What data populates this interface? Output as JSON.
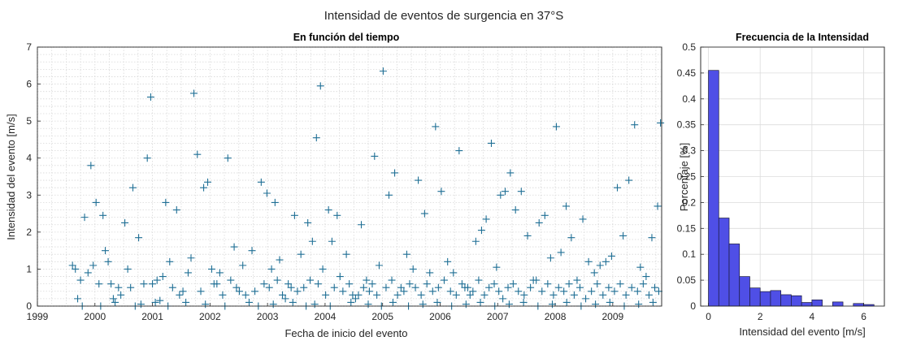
{
  "figure": {
    "suptitle": "Intensidad de eventos de surgencia en 37°S"
  },
  "chart_data": [
    {
      "type": "scatter",
      "title": "En función del tiempo",
      "xlabel": "Fecha de inicio del evento",
      "ylabel": "Intensidad del evento [m/s]",
      "xlim": [
        1999.0,
        2009.85
      ],
      "ylim": [
        0,
        7
      ],
      "xticks": [
        "1999",
        "2000",
        "2001",
        "2002",
        "2003",
        "2004",
        "2005",
        "2006",
        "2007",
        "2008",
        "2009"
      ],
      "yticks": [
        0,
        1,
        2,
        3,
        4,
        5,
        6,
        7
      ],
      "grid": true,
      "minor_grid": true,
      "marker": "+",
      "color": "#1f6f95",
      "x": [
        1999.61,
        1999.66,
        1999.75,
        1999.82,
        1999.88,
        1999.93,
        1999.97,
        2000.02,
        2000.07,
        2000.14,
        2000.18,
        2000.23,
        2000.32,
        2000.41,
        2000.52,
        2000.57,
        2000.66,
        2000.76,
        2000.85,
        2000.91,
        2000.97,
        2001.08,
        2001.13,
        2001.23,
        2001.3,
        2001.42,
        2001.53,
        2001.62,
        2001.72,
        2001.78,
        2001.89,
        2001.96,
        2002.03,
        2002.12,
        2002.22,
        2002.31,
        2002.42,
        2002.46,
        2002.57,
        2002.73,
        2002.89,
        2002.99,
        2003.07,
        2003.13,
        2003.21,
        2003.31,
        2003.41,
        2003.47,
        2003.58,
        2003.7,
        2003.78,
        2003.85,
        2003.92,
        2003.96,
        2004.06,
        2004.12,
        2004.21,
        2004.26,
        2004.37,
        2004.48,
        2004.63,
        2004.72,
        2004.86,
        2004.94,
        2005.01,
        2005.11,
        2005.21,
        2005.32,
        2005.42,
        2005.53,
        2005.62,
        2005.73,
        2005.82,
        2005.92,
        2006.02,
        2006.13,
        2006.23,
        2006.33,
        2006.43,
        2006.52,
        2006.62,
        2006.72,
        2006.8,
        2006.89,
        2006.98,
        2007.05,
        2007.13,
        2007.22,
        2007.31,
        2007.41,
        2007.52,
        2007.62,
        2007.72,
        2007.82,
        2007.92,
        2008.02,
        2008.1,
        2008.19,
        2008.28,
        2008.38,
        2008.48,
        2008.58,
        2008.68,
        2008.78,
        2008.88,
        2008.98,
        2009.08,
        2009.18,
        2009.28,
        2009.38,
        2009.48,
        2009.58,
        2009.68,
        2009.78,
        2009.83,
        1999.7,
        2000.28,
        2000.45,
        2000.62,
        2001.0,
        2001.18,
        2001.35,
        2001.47,
        2001.67,
        2001.84,
        2002.07,
        2002.17,
        2002.36,
        2002.51,
        2002.62,
        2002.78,
        2002.94,
        2003.03,
        2003.17,
        2003.26,
        2003.36,
        2003.52,
        2003.63,
        2003.74,
        2003.88,
        2004.01,
        2004.16,
        2004.31,
        2004.42,
        2004.53,
        2004.58,
        2004.67,
        2004.77,
        2004.82,
        2004.9,
        2005.06,
        2005.16,
        2005.26,
        2005.37,
        2005.47,
        2005.57,
        2005.67,
        2005.77,
        2005.87,
        2005.97,
        2006.07,
        2006.18,
        2006.28,
        2006.38,
        2006.48,
        2006.57,
        2006.67,
        2006.77,
        2006.85,
        2006.94,
        2007.02,
        2007.09,
        2007.18,
        2007.27,
        2007.36,
        2007.46,
        2007.57,
        2007.67,
        2007.77,
        2007.87,
        2007.97,
        2008.06,
        2008.15,
        2008.24,
        2008.33,
        2008.43,
        2008.53,
        2008.63,
        2008.73,
        2008.83,
        2008.93,
        2009.03,
        2009.13,
        2009.23,
        2009.33,
        2009.43,
        2009.53,
        2009.63,
        2009.73,
        2009.8,
        1999.78,
        2000.1,
        2000.35,
        2000.7,
        2000.8,
        2001.05,
        2001.27,
        2001.58,
        2001.92,
        2002.26,
        2002.68,
        2002.84,
        2003.1,
        2003.44,
        2003.67,
        2003.82,
        2004.09,
        2004.45,
        2004.75,
        2004.98,
        2005.18,
        2005.45,
        2005.7,
        2005.95,
        2006.2,
        2006.45,
        2006.7,
        2006.95,
        2007.2,
        2007.45,
        2007.7,
        2007.95,
        2008.2,
        2008.45,
        2008.7,
        2008.95,
        2009.2,
        2009.45,
        2009.7
      ],
      "y": [
        1.1,
        1.0,
        0.7,
        2.4,
        0.9,
        3.8,
        1.1,
        2.8,
        0.6,
        2.45,
        1.5,
        1.2,
        0.2,
        0.5,
        2.25,
        1.0,
        3.2,
        1.85,
        0.6,
        4.0,
        5.65,
        0.7,
        0.15,
        2.8,
        1.2,
        2.6,
        0.4,
        0.9,
        5.75,
        4.1,
        3.2,
        3.35,
        1.0,
        0.6,
        0.3,
        4.0,
        1.6,
        0.5,
        1.1,
        1.5,
        3.35,
        3.05,
        1.0,
        2.8,
        1.25,
        0.2,
        0.5,
        2.45,
        1.4,
        2.25,
        1.75,
        4.55,
        5.95,
        1.0,
        2.6,
        1.75,
        2.45,
        0.8,
        1.4,
        0.3,
        2.2,
        0.7,
        4.05,
        1.1,
        6.35,
        3.0,
        3.6,
        0.5,
        1.4,
        1.0,
        3.4,
        2.5,
        0.9,
        4.85,
        3.1,
        1.2,
        0.9,
        4.2,
        0.5,
        0.3,
        1.75,
        2.05,
        2.35,
        4.4,
        1.05,
        3.0,
        3.1,
        3.6,
        2.6,
        3.1,
        1.9,
        0.7,
        2.25,
        2.45,
        1.3,
        4.85,
        1.45,
        2.7,
        1.85,
        0.7,
        2.35,
        1.2,
        0.9,
        1.1,
        1.2,
        1.35,
        3.2,
        1.9,
        3.4,
        4.9,
        1.05,
        0.8,
        1.85,
        2.7,
        4.95,
        0.2,
        0.6,
        0.3,
        0.5,
        0.6,
        0.8,
        0.5,
        0.3,
        1.3,
        0.4,
        0.6,
        0.9,
        0.7,
        0.4,
        0.3,
        0.4,
        0.6,
        0.5,
        0.7,
        0.3,
        0.6,
        0.4,
        0.5,
        0.7,
        0.6,
        0.3,
        0.5,
        0.4,
        0.6,
        0.2,
        0.3,
        0.5,
        0.4,
        0.6,
        0.3,
        0.5,
        0.7,
        0.3,
        0.4,
        0.6,
        0.5,
        0.3,
        0.6,
        0.4,
        0.5,
        0.7,
        0.4,
        0.3,
        0.6,
        0.5,
        0.4,
        0.7,
        0.3,
        0.5,
        0.6,
        0.4,
        0.2,
        0.5,
        0.6,
        0.4,
        0.3,
        0.5,
        0.7,
        0.4,
        0.6,
        0.3,
        0.5,
        0.4,
        0.6,
        0.3,
        0.5,
        0.2,
        0.4,
        0.6,
        0.3,
        0.5,
        0.4,
        0.6,
        0.3,
        0.5,
        0.4,
        0.6,
        0.3,
        0.5,
        0.4,
        0.0,
        0.0,
        0.1,
        0.0,
        0.05,
        0.1,
        0.0,
        0.1,
        0.05,
        0.0,
        0.1,
        0.0,
        0.05,
        0.1,
        0.0,
        0.05,
        0.0,
        0.1,
        0.05,
        0.0,
        0.1,
        0.0,
        0.05,
        0.1,
        0.0,
        0.05,
        0.1,
        0.0,
        0.05,
        0.1,
        0.0,
        0.05,
        0.1,
        0.0,
        0.05,
        0.1,
        0.0,
        0.05,
        0.1
      ]
    },
    {
      "type": "bar",
      "subtype": "histogram",
      "title": "Frecuencia de la Intensidad",
      "xlabel": "Intensidad del evento [m/s]",
      "ylabel": "Porcentaje [%]",
      "xlim": [
        -0.3,
        6.8
      ],
      "ylim": [
        0,
        0.5
      ],
      "xticks": [
        0,
        2,
        4,
        6
      ],
      "yticks": [
        0,
        0.05,
        0.1,
        0.15,
        0.2,
        0.25,
        0.3,
        0.35,
        0.4,
        0.45,
        0.5
      ],
      "grid": true,
      "bar_color": "#4f4fe6",
      "bin_edges": [
        0,
        0.4,
        0.8,
        1.2,
        1.6,
        2.0,
        2.4,
        2.8,
        3.2,
        3.6,
        4.0,
        4.4,
        4.8,
        5.2,
        5.6,
        6.0,
        6.4
      ],
      "values": [
        0.455,
        0.17,
        0.12,
        0.057,
        0.035,
        0.028,
        0.03,
        0.022,
        0.02,
        0.007,
        0.012,
        0.0,
        0.008,
        0.0,
        0.005,
        0.003
      ]
    }
  ]
}
